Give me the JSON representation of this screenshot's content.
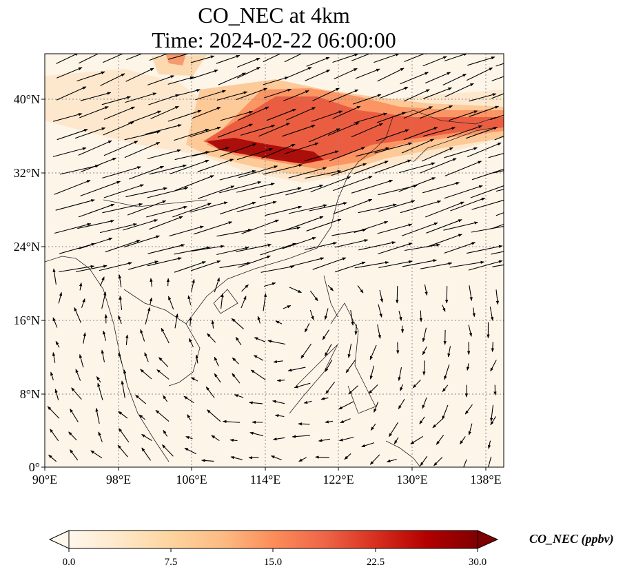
{
  "title": {
    "line1": "CO_NEC at 4km",
    "line2": "Time: 2024-02-22 06:00:00"
  },
  "map": {
    "lon_range": [
      90,
      140
    ],
    "lat_range": [
      0,
      45
    ],
    "lat_ticks": [
      {
        "value": 40,
        "label": "40°N"
      },
      {
        "value": 32,
        "label": "32°N"
      },
      {
        "value": 24,
        "label": "24°N"
      },
      {
        "value": 16,
        "label": "16°N"
      },
      {
        "value": 8,
        "label": "8°N"
      },
      {
        "value": 0,
        "label": "0°"
      }
    ],
    "lon_ticks": [
      {
        "value": 90,
        "label": "90°E"
      },
      {
        "value": 98,
        "label": "98°E"
      },
      {
        "value": 106,
        "label": "106°E"
      },
      {
        "value": 114,
        "label": "114°E"
      },
      {
        "value": 122,
        "label": "122°E"
      },
      {
        "value": 130,
        "label": "130°E"
      },
      {
        "value": 138,
        "label": "138°E"
      }
    ],
    "gridlines": "dotted",
    "vectors": "wind arrows"
  },
  "colorbar": {
    "label": "CO_NEC (ppbv)",
    "colormap": "OrRd",
    "min": 0.0,
    "max": 30.0,
    "ticks": [
      "0.0",
      "7.5",
      "15.0",
      "22.5",
      "30.0"
    ],
    "extend": "both",
    "colors": [
      "#fff7ec",
      "#fee8c8",
      "#fdd49e",
      "#fdbb84",
      "#fc8d59",
      "#ef6548",
      "#d7301f",
      "#b30000",
      "#7f0000"
    ]
  }
}
